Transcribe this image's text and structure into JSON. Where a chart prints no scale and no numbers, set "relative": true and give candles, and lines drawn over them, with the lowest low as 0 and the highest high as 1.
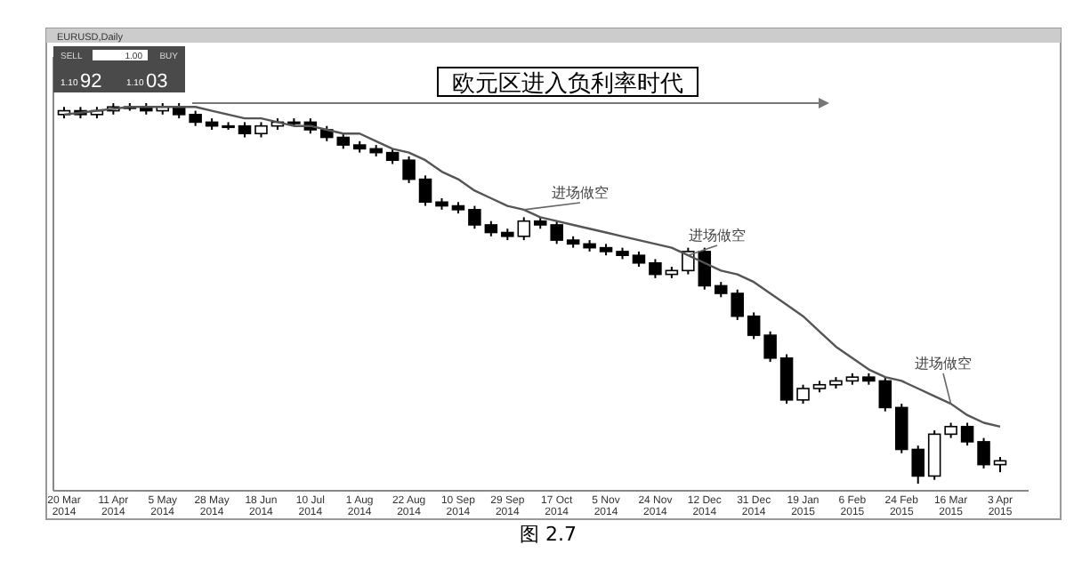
{
  "chart_data": {
    "type": "candlestick",
    "title": "欧元区进入负利率时代",
    "relative": true,
    "color": "#000000",
    "categories": [
      "20 Mar 2014",
      null,
      null,
      "11 Apr 2014",
      null,
      null,
      "5 May 2014",
      null,
      null,
      "28 May 2014",
      null,
      null,
      "18 Jun 2014",
      null,
      null,
      "10 Jul 2014",
      null,
      null,
      "1 Aug 2014",
      null,
      null,
      "22 Aug 2014",
      null,
      null,
      "10 Sep 2014",
      null,
      null,
      "29 Sep 2014",
      null,
      null,
      "17 Oct 2014",
      null,
      null,
      "5 Nov 2014",
      null,
      null,
      "24 Nov 2014",
      null,
      null,
      "12 Dec 2014",
      null,
      null,
      "31 Dec 2014",
      null,
      null,
      "19 Jan 2015",
      null,
      null,
      "6 Feb 2015",
      null,
      null,
      "24 Feb 2015",
      null,
      null,
      "16 Mar 2015",
      null,
      null,
      "3 Apr 2015"
    ],
    "ohlc": [
      [
        0.97,
        0.99,
        0.96,
        0.98
      ],
      [
        0.98,
        0.99,
        0.96,
        0.97
      ],
      [
        0.97,
        0.99,
        0.96,
        0.98
      ],
      [
        0.98,
        1,
        0.97,
        0.99
      ],
      [
        0.99,
        1,
        0.98,
        0.99
      ],
      [
        0.99,
        1,
        0.97,
        0.98
      ],
      [
        0.98,
        1,
        0.97,
        0.99
      ],
      [
        0.99,
        1,
        0.96,
        0.97
      ],
      [
        0.97,
        0.98,
        0.94,
        0.95
      ],
      [
        0.95,
        0.96,
        0.93,
        0.94
      ],
      [
        0.94,
        0.95,
        0.93,
        0.94
      ],
      [
        0.94,
        0.95,
        0.91,
        0.92
      ],
      [
        0.92,
        0.95,
        0.91,
        0.94
      ],
      [
        0.94,
        0.96,
        0.93,
        0.95
      ],
      [
        0.95,
        0.96,
        0.94,
        0.95
      ],
      [
        0.95,
        0.96,
        0.92,
        0.93
      ],
      [
        0.93,
        0.94,
        0.9,
        0.91
      ],
      [
        0.91,
        0.92,
        0.88,
        0.89
      ],
      [
        0.89,
        0.9,
        0.87,
        0.88
      ],
      [
        0.88,
        0.89,
        0.86,
        0.87
      ],
      [
        0.87,
        0.88,
        0.84,
        0.85
      ],
      [
        0.85,
        0.86,
        0.79,
        0.8
      ],
      [
        0.8,
        0.81,
        0.73,
        0.74
      ],
      [
        0.74,
        0.75,
        0.72,
        0.73
      ],
      [
        0.73,
        0.74,
        0.71,
        0.72
      ],
      [
        0.72,
        0.73,
        0.67,
        0.68
      ],
      [
        0.68,
        0.69,
        0.65,
        0.66
      ],
      [
        0.66,
        0.67,
        0.64,
        0.65
      ],
      [
        0.65,
        0.7,
        0.64,
        0.69
      ],
      [
        0.69,
        0.7,
        0.67,
        0.68
      ],
      [
        0.68,
        0.69,
        0.63,
        0.64
      ],
      [
        0.64,
        0.65,
        0.62,
        0.63
      ],
      [
        0.63,
        0.64,
        0.61,
        0.62
      ],
      [
        0.62,
        0.63,
        0.6,
        0.61
      ],
      [
        0.61,
        0.62,
        0.59,
        0.6
      ],
      [
        0.6,
        0.61,
        0.57,
        0.58
      ],
      [
        0.58,
        0.59,
        0.54,
        0.55
      ],
      [
        0.55,
        0.57,
        0.54,
        0.56
      ],
      [
        0.56,
        0.62,
        0.55,
        0.61
      ],
      [
        0.61,
        0.62,
        0.51,
        0.52
      ],
      [
        0.52,
        0.53,
        0.49,
        0.5
      ],
      [
        0.5,
        0.51,
        0.43,
        0.44
      ],
      [
        0.44,
        0.45,
        0.38,
        0.39
      ],
      [
        0.39,
        0.4,
        0.32,
        0.33
      ],
      [
        0.33,
        0.34,
        0.21,
        0.22
      ],
      [
        0.22,
        0.26,
        0.21,
        0.25
      ],
      [
        0.25,
        0.27,
        0.24,
        0.26
      ],
      [
        0.26,
        0.28,
        0.25,
        0.27
      ],
      [
        0.27,
        0.29,
        0.26,
        0.28
      ],
      [
        0.28,
        0.29,
        0.26,
        0.27
      ],
      [
        0.27,
        0.28,
        0.19,
        0.2
      ],
      [
        0.2,
        0.21,
        0.08,
        0.09
      ],
      [
        0.09,
        0.1,
        0,
        0.02
      ],
      [
        0.02,
        0.14,
        0.01,
        0.13
      ],
      [
        0.13,
        0.16,
        0.12,
        0.15
      ],
      [
        0.15,
        0.16,
        0.1,
        0.11
      ],
      [
        0.11,
        0.12,
        0.04,
        0.05
      ],
      [
        0.05,
        0.07,
        0.03,
        0.06
      ]
    ],
    "series": [
      {
        "type": "line",
        "color": "#555555",
        "values": [
          0.97,
          0.975,
          0.98,
          0.985,
          0.99,
          0.99,
          0.99,
          0.99,
          0.99,
          0.98,
          0.97,
          0.96,
          0.96,
          0.95,
          0.94,
          0.94,
          0.93,
          0.92,
          0.92,
          0.9,
          0.88,
          0.87,
          0.85,
          0.82,
          0.8,
          0.77,
          0.75,
          0.73,
          0.72,
          0.7,
          0.69,
          0.68,
          0.67,
          0.66,
          0.65,
          0.64,
          0.63,
          0.62,
          0.6,
          0.58,
          0.56,
          0.55,
          0.53,
          0.5,
          0.47,
          0.44,
          0.4,
          0.36,
          0.33,
          0.3,
          0.28,
          0.27,
          0.25,
          0.23,
          0.21,
          0.18,
          0.16,
          0.15
        ]
      }
    ],
    "annotations": [
      "EURUSD,Daily",
      "SELL",
      "1.00",
      "BUY",
      "1.10",
      "92",
      "1.10",
      "03",
      "进场做空",
      "进场做空",
      "进场做空",
      "图 2.7"
    ]
  }
}
